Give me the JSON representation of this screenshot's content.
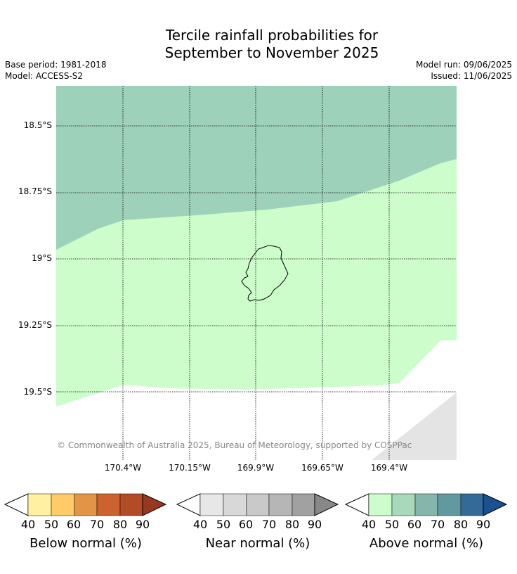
{
  "title_line1": "Tercile rainfall probabilities for",
  "title_line2": "September to November 2025",
  "meta_left": {
    "base_period": "Base period: 1981-2018",
    "model": "Model: ACCESS-S2"
  },
  "meta_right": {
    "model_run": "Model run: 09/06/2025",
    "issued": "Issued: 11/06/2025"
  },
  "map": {
    "latitude_labels": [
      "18.5°S",
      "18.75°S",
      "19°S",
      "19.25°S",
      "19.5°S"
    ],
    "longitude_labels": [
      "170.4°W",
      "170.15°W",
      "169.9°W",
      "169.65°W",
      "169.4°W"
    ],
    "copyright": "© Commonwealth of Australia 2025, Bureau of Meteorology, supported by COSPPac",
    "colors": {
      "above_50": "#9ed1ba",
      "above_40": "#ccfdcb",
      "no_data": "#e4e4e4",
      "coastline": "#000000",
      "grid": "#000000"
    }
  },
  "colorbars": [
    {
      "title": "Below normal (%)",
      "ticks": [
        "40",
        "50",
        "60",
        "70",
        "80",
        "90"
      ],
      "colors": [
        "#fff0a2",
        "#fecb66",
        "#e29545",
        "#cd6231",
        "#b24c27",
        "#973820"
      ]
    },
    {
      "title": "Near normal (%)",
      "ticks": [
        "40",
        "50",
        "60",
        "70",
        "80",
        "90"
      ],
      "colors": [
        "#e7e7e7",
        "#d8d8d8",
        "#c9c9c9",
        "#b6b6b6",
        "#a1a1a1",
        "#888888"
      ]
    },
    {
      "title": "Above normal (%)",
      "ticks": [
        "40",
        "50",
        "60",
        "70",
        "80",
        "90"
      ],
      "colors": [
        "#ccfdcb",
        "#a9d9bb",
        "#86b6ab",
        "#62999f",
        "#336a97",
        "#1b5190"
      ]
    }
  ]
}
